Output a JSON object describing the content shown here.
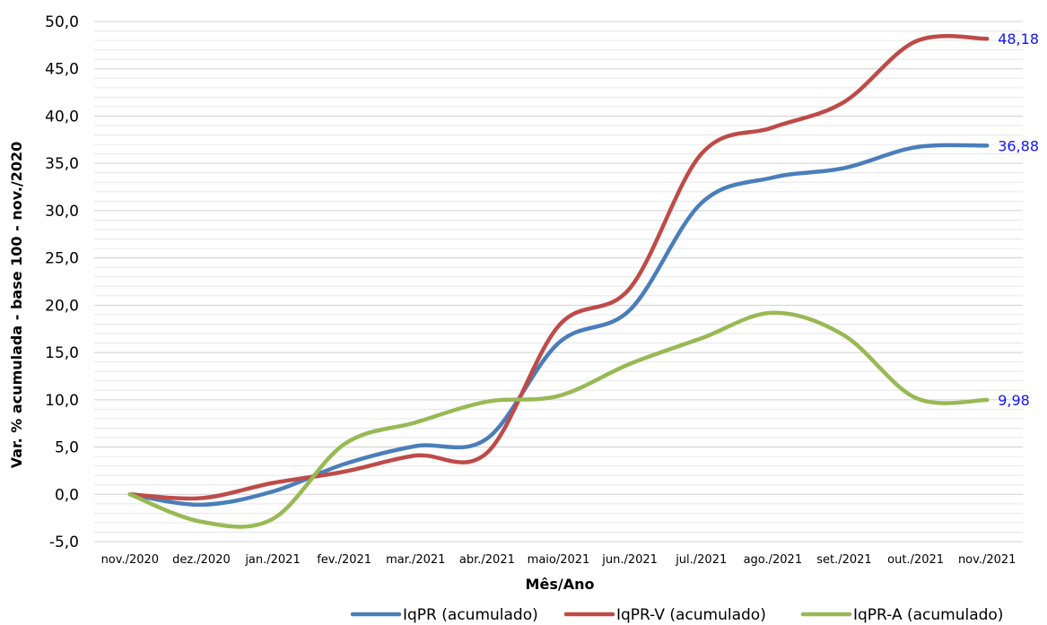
{
  "chart_data": {
    "type": "line",
    "xlabel": "Mês/Ano",
    "ylabel": "Var. % acumulada - base 100 - nov./2020",
    "ylim": [
      -5,
      50
    ],
    "y_ticks": [
      "-5,0",
      "0,0",
      "5,0",
      "10,0",
      "15,0",
      "20,0",
      "25,0",
      "30,0",
      "35,0",
      "40,0",
      "45,0",
      "50,0"
    ],
    "categories": [
      "nov./2020",
      "dez./2020",
      "jan./2021",
      "fev./2021",
      "mar./2021",
      "abr./2021",
      "maio/2021",
      "jun./2021",
      "jul./2021",
      "ago./2021",
      "set./2021",
      "out./2021",
      "nov./2021"
    ],
    "series": [
      {
        "name": "IqPR (acumulado)",
        "color": "#4a7ebb",
        "values": [
          0.0,
          -1.1,
          0.3,
          3.2,
          5.1,
          5.9,
          16.0,
          19.5,
          30.8,
          33.5,
          34.5,
          36.7,
          36.88
        ],
        "end_label": "36,88"
      },
      {
        "name": "IqPR-V (acumulado)",
        "color": "#be4b48",
        "values": [
          0.0,
          -0.4,
          1.2,
          2.4,
          4.1,
          4.4,
          17.8,
          21.8,
          36.0,
          38.8,
          41.5,
          47.9,
          48.18
        ],
        "end_label": "48,18"
      },
      {
        "name": "IqPR-A (acumulado)",
        "color": "#98b954",
        "values": [
          0.0,
          -2.9,
          -2.6,
          5.3,
          7.6,
          9.8,
          10.4,
          13.8,
          16.5,
          19.2,
          16.8,
          10.2,
          9.98
        ],
        "end_label": "9,98"
      }
    ],
    "grid": true,
    "legend_position": "bottom-right",
    "data_label_color": "#1515f0"
  }
}
